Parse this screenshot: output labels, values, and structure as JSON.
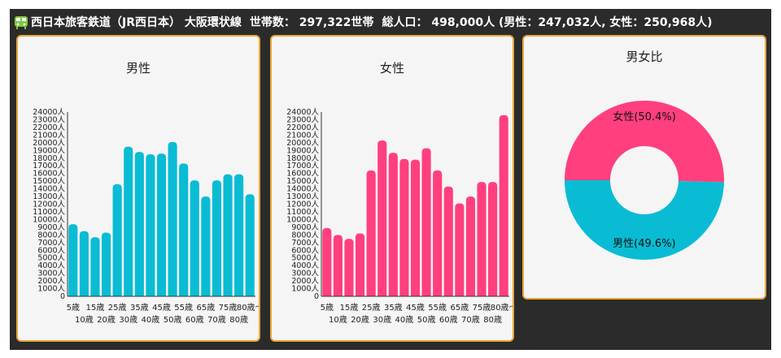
{
  "header": {
    "title": "西日本旅客鉄道（JR西日本） 大阪環状線",
    "households": "世帯数： 297,322世帯",
    "population": "総人口： 498,000人 (男性：247,032人, 女性：250,968人)"
  },
  "colors": {
    "male": "#09bcd4",
    "female": "#ff3f7e",
    "accent_border": "#e8a63c"
  },
  "chart_data": [
    {
      "type": "bar",
      "title": "男性",
      "categories": [
        "5歳",
        "10歳",
        "15歳",
        "20歳",
        "25歳",
        "30歳",
        "35歳",
        "40歳",
        "45歳",
        "50歳",
        "55歳",
        "60歳",
        "65歳",
        "70歳",
        "75歳",
        "80歳",
        "80歳～"
      ],
      "values": [
        9400,
        8500,
        7700,
        8300,
        14600,
        19500,
        18800,
        18500,
        18600,
        20100,
        17300,
        15100,
        13000,
        15100,
        15900,
        15900,
        13300
      ],
      "yticks": [
        0,
        1000,
        2000,
        3000,
        4000,
        5000,
        6000,
        7000,
        8000,
        9000,
        10000,
        11000,
        12000,
        13000,
        14000,
        15000,
        16000,
        17000,
        18000,
        19000,
        20000,
        21000,
        22000,
        23000,
        24000
      ],
      "ytick_labels": [
        "0",
        "1000人",
        "2000人",
        "3000人",
        "4000人",
        "5000人",
        "6000人",
        "7000人",
        "8000人",
        "9000人",
        "10000人",
        "11000人",
        "12000人",
        "13000人",
        "14000人",
        "15000人",
        "16000人",
        "17000人",
        "18000人",
        "19000人",
        "20000人",
        "21000人",
        "22000人",
        "23000人",
        "24000人"
      ],
      "ylim": [
        0,
        24000
      ]
    },
    {
      "type": "bar",
      "title": "女性",
      "categories": [
        "5歳",
        "10歳",
        "15歳",
        "20歳",
        "25歳",
        "30歳",
        "35歳",
        "40歳",
        "45歳",
        "50歳",
        "55歳",
        "60歳",
        "65歳",
        "70歳",
        "75歳",
        "80歳",
        "80歳～"
      ],
      "values": [
        8900,
        8000,
        7500,
        8200,
        16400,
        20300,
        18700,
        17900,
        17800,
        19300,
        16400,
        14300,
        12100,
        13000,
        14900,
        14900,
        23600
      ],
      "yticks": [
        0,
        1000,
        2000,
        3000,
        4000,
        5000,
        6000,
        7000,
        8000,
        9000,
        10000,
        11000,
        12000,
        13000,
        14000,
        15000,
        16000,
        17000,
        18000,
        19000,
        20000,
        21000,
        22000,
        23000,
        24000
      ],
      "ytick_labels": [
        "0",
        "1000人",
        "2000人",
        "3000人",
        "4000人",
        "5000人",
        "6000人",
        "7000人",
        "8000人",
        "9000人",
        "10000人",
        "11000人",
        "12000人",
        "13000人",
        "14000人",
        "15000人",
        "16000人",
        "17000人",
        "18000人",
        "19000人",
        "20000人",
        "21000人",
        "22000人",
        "23000人",
        "24000人"
      ],
      "ylim": [
        0,
        24000
      ]
    },
    {
      "type": "pie",
      "title": "男女比",
      "slices": [
        {
          "label": "女性(50.4%)",
          "value": 50.4
        },
        {
          "label": "男性(49.6%)",
          "value": 49.6
        }
      ]
    }
  ]
}
